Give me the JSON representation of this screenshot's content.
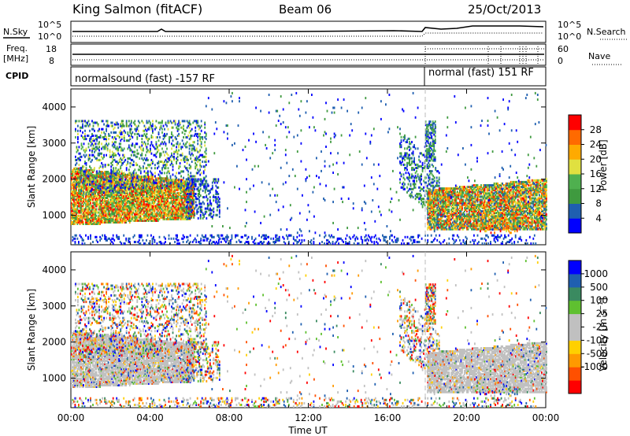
{
  "header": {
    "station": "King Salmon (fitACF)",
    "beam": "Beam 06",
    "date": "25/Oct/2013"
  },
  "noise_panel": {
    "left_label": "N.Sky",
    "right_label": "N.Search",
    "left_ticks": [
      "10^5",
      "10^0"
    ],
    "right_ticks": [
      "10^5",
      "10^0"
    ]
  },
  "freq_panel": {
    "left_label_1": "Freq.",
    "left_label_2": "[MHz]",
    "left_ticks": [
      "18",
      "8"
    ],
    "right_label": "Nave",
    "right_ticks": [
      "60",
      "0"
    ]
  },
  "cpid_panel": {
    "label": "CPID",
    "program_1": "normalsound (fast) -157 RF",
    "program_2": "normal (fast) 151 RF"
  },
  "colors": {
    "power_scale": [
      "#0000ff",
      "#1f5fb0",
      "#3f9a3f",
      "#4fb04f",
      "#e0e040",
      "#ffaa00",
      "#ff6a00",
      "#ff0000"
    ],
    "velocity_scale": [
      "#ff0000",
      "#ff5000",
      "#ff9a00",
      "#ffd000",
      "#c0c0c0",
      "#c0c0c0",
      "#5fc030",
      "#3a8a60",
      "#1f5fb0",
      "#0000ff"
    ],
    "ground_scatter": "#c0c0c0"
  },
  "chart_data": [
    {
      "type": "heatmap",
      "ylabel": "Slant Range [km]",
      "xlabel": "Time UT",
      "x_ticks": [
        "00:00",
        "04:00",
        "08:00",
        "12:00",
        "16:00",
        "20:00",
        "00:00"
      ],
      "xlim_hours": [
        0,
        24
      ],
      "y_ticks": [
        "1000",
        "2000",
        "3000",
        "4000"
      ],
      "ylim": [
        180,
        4500
      ],
      "colorbar_label": "Power [dB]",
      "colorbar_ticks": [
        "4",
        "8",
        "12",
        "16",
        "20",
        "24",
        "28"
      ],
      "colorbar_range": [
        0,
        32
      ],
      "grid": false
    },
    {
      "type": "heatmap",
      "ylabel": "Slant Range [km]",
      "xlabel": "Time UT",
      "x_ticks": [
        "00:00",
        "04:00",
        "08:00",
        "12:00",
        "16:00",
        "20:00",
        "00:00"
      ],
      "xlim_hours": [
        0,
        24
      ],
      "y_ticks": [
        "1000",
        "2000",
        "3000",
        "4000"
      ],
      "ylim": [
        180,
        4500
      ],
      "colorbar_label": "Velocity [m s^-1]",
      "colorbar_ticks": [
        "1000",
        "500",
        "100",
        "25",
        "-25",
        "-100",
        "-500",
        "-1000"
      ],
      "grid": false
    }
  ]
}
